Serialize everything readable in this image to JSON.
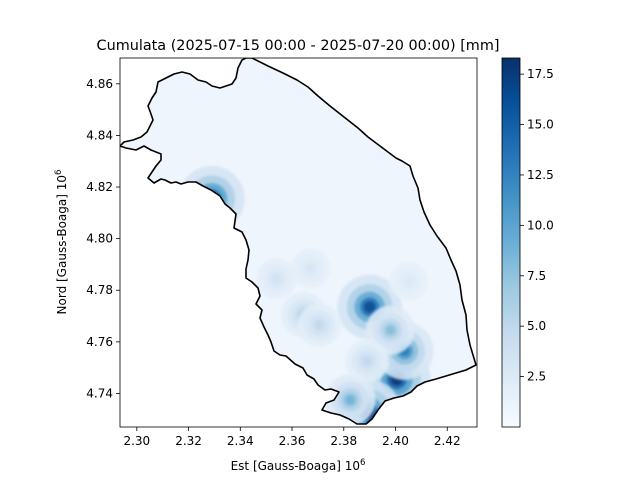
{
  "chart_data": {
    "type": "heatmap",
    "title": "Cumulata (2025-07-15 00:00 - 2025-07-20 00:00) [mm]",
    "xlabel": "Est [Gauss-Boaga]",
    "ylabel": "Nord [Gauss-Boaga]",
    "axis_scale_label": "10",
    "axis_scale_exponent": "6",
    "xlim": [
      2.2935,
      2.4315
    ],
    "ylim": [
      4.727,
      4.87
    ],
    "xticks": [
      2.3,
      2.32,
      2.34,
      2.36,
      2.38,
      2.4,
      2.42
    ],
    "xtick_labels": [
      "2.30",
      "2.32",
      "2.34",
      "2.36",
      "2.38",
      "2.40",
      "2.42"
    ],
    "yticks": [
      4.74,
      4.76,
      4.78,
      4.8,
      4.82,
      4.84,
      4.86
    ],
    "ytick_labels": [
      "4.74",
      "4.76",
      "4.78",
      "4.80",
      "4.82",
      "4.84",
      "4.86"
    ],
    "colormap": "Blues",
    "colorbar": {
      "min": 0,
      "max": 18.3,
      "ticks": [
        2.5,
        5.0,
        7.5,
        10.0,
        12.5,
        15.0,
        17.5
      ],
      "tick_labels": [
        "2.5",
        "5.0",
        "7.5",
        "10.0",
        "12.5",
        "15.0",
        "17.5"
      ]
    },
    "rain_peaks_mm": [
      {
        "x": 2.329,
        "y": 4.8155,
        "value": 17.0
      },
      {
        "x": 2.39,
        "y": 4.7735,
        "value": 16.5
      },
      {
        "x": 2.4005,
        "y": 4.7455,
        "value": 18.0
      },
      {
        "x": 2.4035,
        "y": 4.7565,
        "value": 13.0
      },
      {
        "x": 2.398,
        "y": 4.7645,
        "value": 8.0
      },
      {
        "x": 2.3895,
        "y": 4.7325,
        "value": 17.5
      },
      {
        "x": 2.3825,
        "y": 4.7375,
        "value": 9.0
      },
      {
        "x": 2.3645,
        "y": 4.7705,
        "value": 6.0
      },
      {
        "x": 2.3705,
        "y": 4.7665,
        "value": 5.0
      },
      {
        "x": 2.354,
        "y": 4.7845,
        "value": 3.5
      },
      {
        "x": 2.367,
        "y": 4.7885,
        "value": 3.0
      },
      {
        "x": 2.389,
        "y": 4.7525,
        "value": 5.0
      },
      {
        "x": 2.405,
        "y": 4.7835,
        "value": 2.5
      }
    ],
    "grid": false,
    "region_outline_color": "#000000"
  }
}
